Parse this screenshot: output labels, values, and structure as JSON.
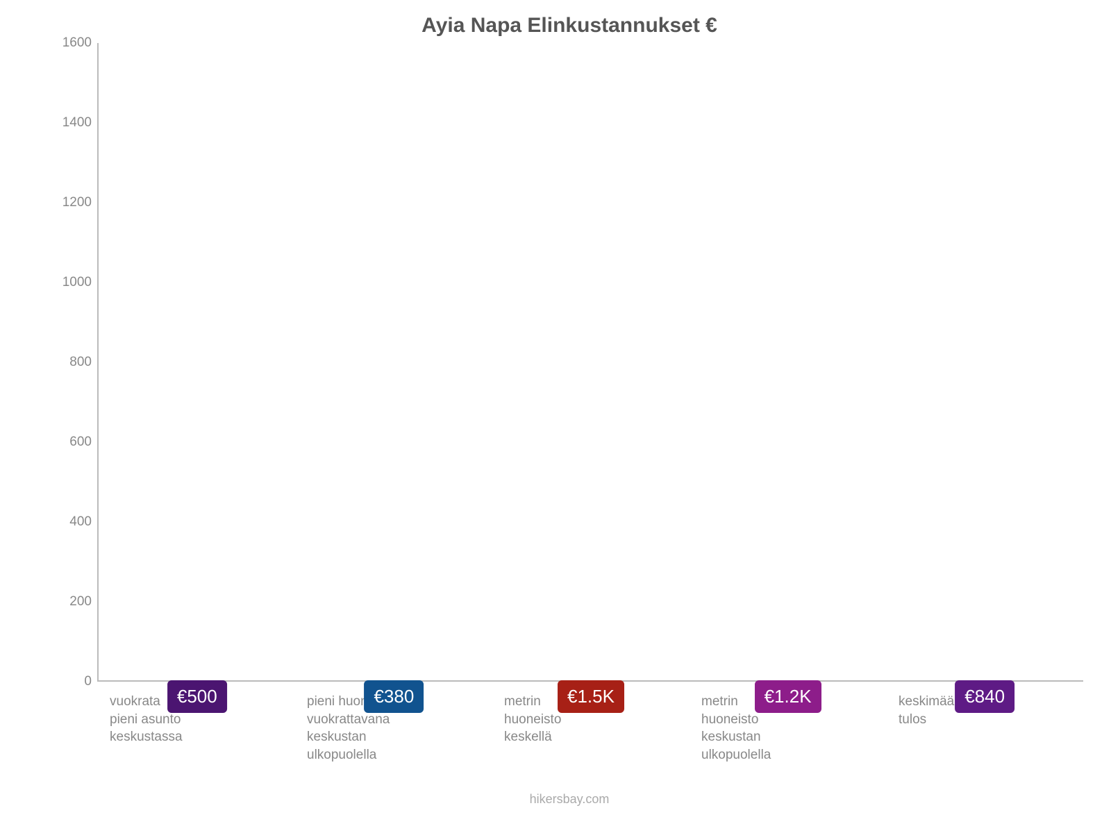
{
  "chart": {
    "type": "bar",
    "title": "Ayia Napa Elinkustannukset €",
    "title_fontsize": 30,
    "title_color": "#555555",
    "background_color": "#ffffff",
    "axis_color": "#bbbbbb",
    "tick_color": "#888888",
    "tick_fontsize": 19,
    "xlabel_fontsize": 19,
    "ylim": [
      0,
      1600
    ],
    "ytick_step": 200,
    "yticks": [
      0,
      200,
      400,
      600,
      800,
      1000,
      1200,
      1400,
      1600
    ],
    "bar_width": 0.88,
    "bar_label_fontsize": 26,
    "bar_label_radius": 6,
    "bars": [
      {
        "category": "vuokrata\npieni asunto\nkeskustassa",
        "value": 500,
        "display": "€500",
        "bar_color": "#8a2be2",
        "label_bg": "#4b1571",
        "label_text_color": "#ffffff"
      },
      {
        "category": "pieni huoneisto\nvuokrattavana\nkeskustan\nulkopuolella",
        "value": 380,
        "display": "€380",
        "bar_color": "#2a7fdc",
        "label_bg": "#11538f",
        "label_text_color": "#ffffff"
      },
      {
        "category": "metrin\nhuoneisto\nkeskellä",
        "value": 1500,
        "display": "€1.5K",
        "bar_color": "#e83a32",
        "label_bg": "#a72016",
        "label_text_color": "#ffffff"
      },
      {
        "category": "metrin\nhuoneisto\nkeskustan\nulkopuolella",
        "value": 1230,
        "display": "€1.2K",
        "bar_color": "#d744d8",
        "label_bg": "#8d1d8a",
        "label_text_color": "#ffffff"
      },
      {
        "category": "keskimääräiset\ntulos",
        "value": 840,
        "display": "€840",
        "bar_color": "#a33fdc",
        "label_bg": "#5e1b85",
        "label_text_color": "#ffffff"
      }
    ],
    "footer": "hikersbay.com",
    "footer_color": "#aaaaaa",
    "footer_fontsize": 18
  }
}
